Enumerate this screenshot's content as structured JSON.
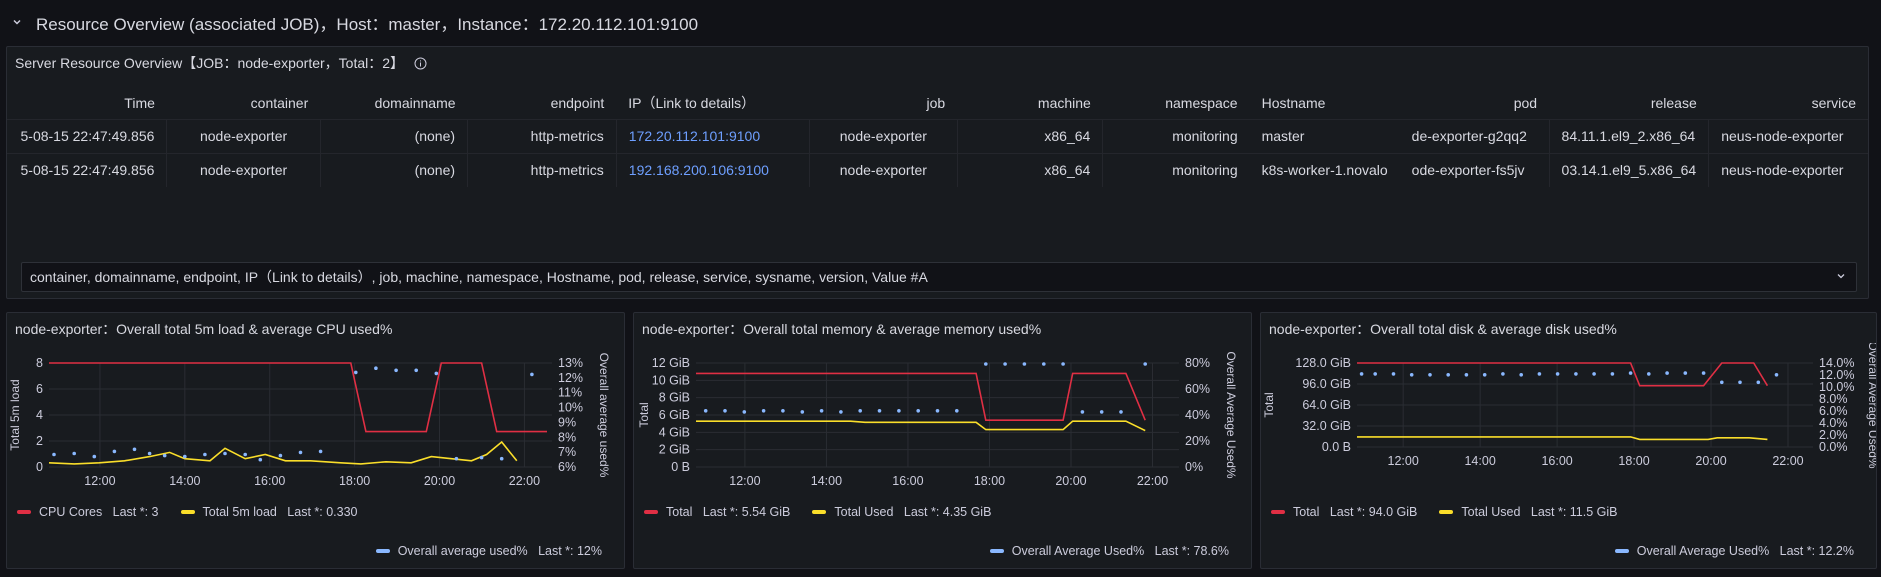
{
  "row": {
    "title": "Resource Overview (associated JOB)，Host：master，Instance：172.20.112.101:9100"
  },
  "table_panel": {
    "title": "Server Resource Overview【JOB：node-exporter，Total：2】",
    "columns": [
      "Time",
      "container",
      "domainname",
      "endpoint",
      "IP（Link to details）",
      "job",
      "machine",
      "namespace",
      "Hostname",
      "pod",
      "release",
      "service"
    ],
    "rows": [
      [
        "5-08-15 22:47:49.856",
        "node-exporter",
        "(none)",
        "http-metrics",
        "172.20.112.101:9100",
        "node-exporter",
        "x86_64",
        "monitoring",
        "master",
        "de-exporter-g2qq2",
        "84.11.1.el9_2.x86_64",
        "neus-node-exporter"
      ],
      [
        "5-08-15 22:47:49.856",
        "node-exporter",
        "(none)",
        "http-metrics",
        "192.168.200.106:9100",
        "node-exporter",
        "x86_64",
        "monitoring",
        "k8s-worker-1.novalo",
        "ode-exporter-fs5jv",
        "03.14.1.el9_5.x86_64",
        "neus-node-exporter"
      ]
    ],
    "select_value": "container, domainname, endpoint, IP（Link to details）, job, machine, namespace, Hostname, pod, release, service, sysname, version, Value #A"
  },
  "charts": [
    {
      "title": "node-exporter：Overall total 5m load & average CPU used%",
      "left_axis_label": "Total 5m load",
      "right_axis_label": "Overall average used%",
      "left_ticks": [
        "0",
        "2",
        "4",
        "6",
        "8"
      ],
      "right_ticks": [
        "6%",
        "7%",
        "8%",
        "9%",
        "10%",
        "11%",
        "12%",
        "13%"
      ],
      "x_ticks": [
        "12:00",
        "14:00",
        "16:00",
        "18:00",
        "20:00",
        "22:00"
      ],
      "legend": [
        {
          "label": "CPU Cores",
          "last": "Last *: 3",
          "color": "#e02f44"
        },
        {
          "label": "Total 5m load",
          "last": "Last *: 0.330",
          "color": "#fade2a"
        }
      ],
      "legend2": {
        "label": "Overall average used%",
        "last": "Last *: 12%",
        "color": "#8ab8ff"
      }
    },
    {
      "title": "node-exporter：Overall total memory & average memory used%",
      "left_axis_label": "Total",
      "right_axis_label": "Overall Average Used%",
      "left_ticks": [
        "0 B",
        "2 GiB",
        "4 GiB",
        "6 GiB",
        "8 GiB",
        "10 GiB",
        "12 GiB"
      ],
      "right_ticks": [
        "0%",
        "20%",
        "40%",
        "60%",
        "80%"
      ],
      "x_ticks": [
        "12:00",
        "14:00",
        "16:00",
        "18:00",
        "20:00",
        "22:00"
      ],
      "legend": [
        {
          "label": "Total",
          "last": "Last *: 5.54 GiB",
          "color": "#e02f44"
        },
        {
          "label": "Total Used",
          "last": "Last *: 4.35 GiB",
          "color": "#fade2a"
        }
      ],
      "legend2": {
        "label": "Overall Average Used%",
        "last": "Last *: 78.6%",
        "color": "#8ab8ff"
      }
    },
    {
      "title": "node-exporter：Overall total disk & average disk used%",
      "left_axis_label": "Total",
      "right_axis_label": "Overall Average Used%",
      "left_ticks": [
        "0.0 B",
        "32.0 GiB",
        "64.0 GiB",
        "96.0 GiB",
        "128.0 GiB"
      ],
      "right_ticks": [
        "0.0%",
        "2.0%",
        "4.0%",
        "6.0%",
        "8.0%",
        "10.0%",
        "12.0%",
        "14.0%"
      ],
      "x_ticks": [
        "12:00",
        "14:00",
        "16:00",
        "18:00",
        "20:00",
        "22:00"
      ],
      "legend": [
        {
          "label": "Total",
          "last": "Last *: 94.0 GiB",
          "color": "#e02f44"
        },
        {
          "label": "Total Used",
          "last": "Last *: 11.5 GiB",
          "color": "#fade2a"
        }
      ],
      "legend2": {
        "label": "Overall Average Used%",
        "last": "Last *: 12.2%",
        "color": "#8ab8ff"
      }
    }
  ]
}
